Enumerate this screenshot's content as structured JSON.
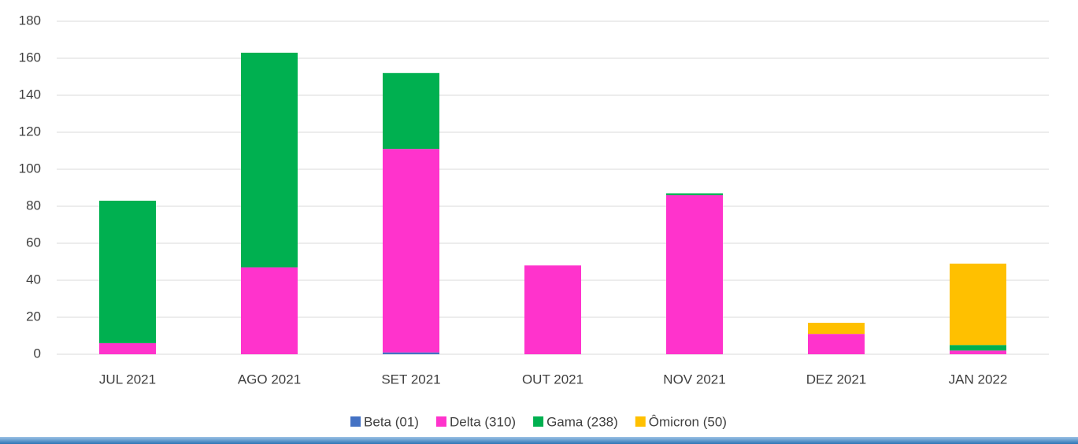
{
  "chart_data": {
    "type": "stacked_bar",
    "categories": [
      "JUL 2021",
      "AGO 2021",
      "SET 2021",
      "OUT 2021",
      "NOV 2021",
      "DEZ 2021",
      "JAN 2022"
    ],
    "series": [
      {
        "name": "Beta (01)",
        "color": "#4472c4",
        "values": [
          0,
          0,
          1,
          0,
          0,
          0,
          0
        ]
      },
      {
        "name": "Delta (310)",
        "color": "#ff33cc",
        "values": [
          6,
          47,
          110,
          48,
          86,
          11,
          2
        ]
      },
      {
        "name": "Gama (238)",
        "color": "#00b050",
        "values": [
          77,
          116,
          41,
          0,
          1,
          0,
          3
        ]
      },
      {
        "name": "Ômicron (50)",
        "color": "#ffc000",
        "values": [
          0,
          0,
          0,
          0,
          0,
          6,
          44
        ]
      }
    ],
    "ylim": [
      0,
      180
    ],
    "yticks": [
      0,
      20,
      40,
      60,
      80,
      100,
      120,
      140,
      160,
      180
    ],
    "grid": true,
    "legend": "bottom"
  }
}
